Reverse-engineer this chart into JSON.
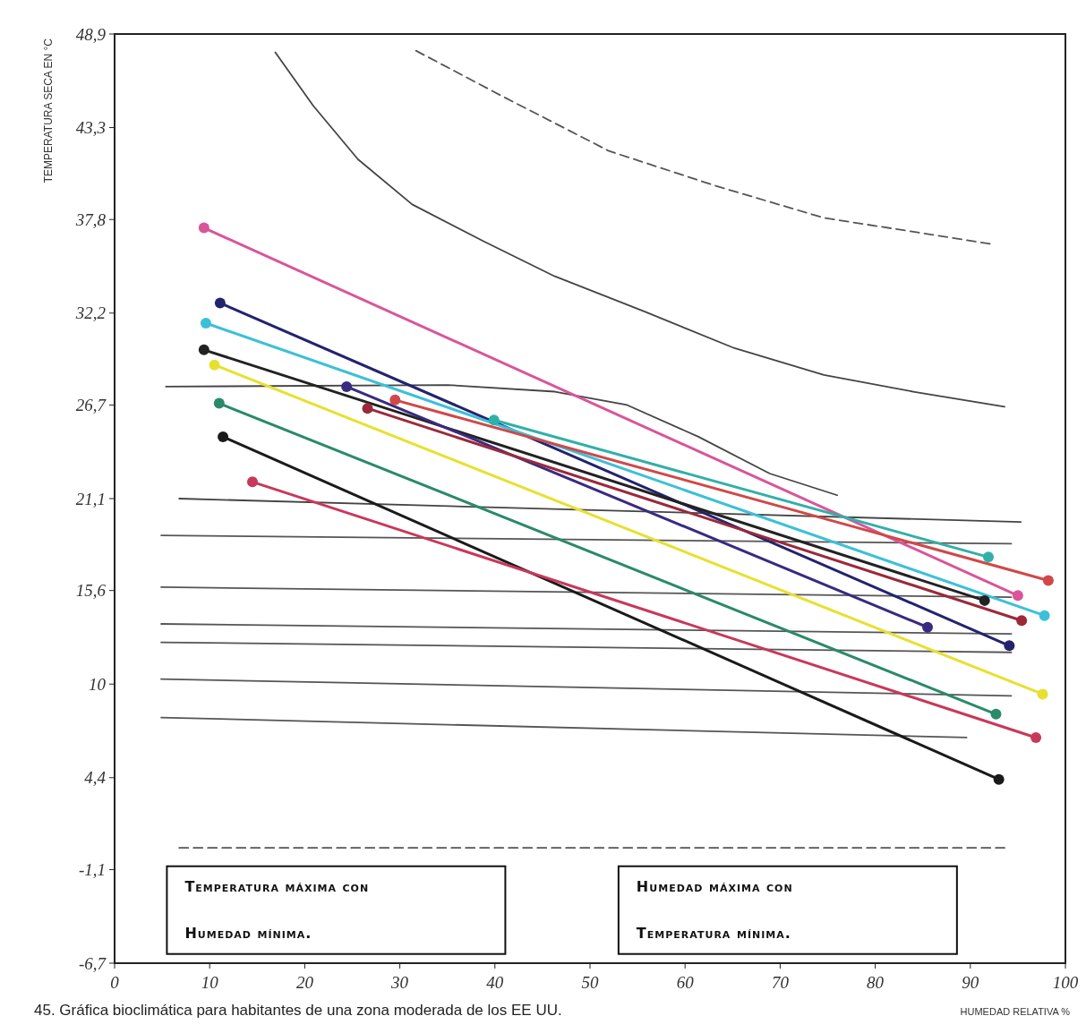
{
  "chart_data": {
    "type": "line",
    "title": "45. Gráfica bioclimática para habitantes de una zona moderada de los EE UU.",
    "xlabel": "HUMEDAD RELATIVA %",
    "ylabel": "TEMPERATURA SECA EN °C",
    "xlim": [
      0,
      100
    ],
    "xticks": [
      0,
      10,
      20,
      30,
      40,
      50,
      60,
      70,
      80,
      90,
      100
    ],
    "ylim": [
      -6.7,
      48.9
    ],
    "yticks": [
      {
        "value": -6.7,
        "label": "-6,7"
      },
      {
        "value": -1.1,
        "label": "-1,1"
      },
      {
        "value": 4.4,
        "label": "4,4"
      },
      {
        "value": 10,
        "label": "10"
      },
      {
        "value": 15.6,
        "label": "15,6"
      },
      {
        "value": 21.1,
        "label": "21,1"
      },
      {
        "value": 26.7,
        "label": "26,7"
      },
      {
        "value": 32.2,
        "label": "32,2"
      },
      {
        "value": 37.8,
        "label": "37,8"
      },
      {
        "value": 43.3,
        "label": "43,3"
      },
      {
        "value": 48.9,
        "label": "48,9"
      }
    ],
    "grid": false,
    "annotations": [
      "Temperatura máxima con Humedad mínima.",
      "Humedad máxima con Temperatura mínima."
    ],
    "series": [
      {
        "color": "#444444",
        "marker": "none",
        "line_style": "solid",
        "x": [
          16.9,
          20.9,
          25.6,
          31.3,
          38.8,
          46.3,
          55.7,
          65.2,
          74.6,
          84.0,
          93.6
        ],
        "values": [
          47.8,
          44.6,
          41.4,
          38.7,
          36.5,
          34.4,
          32.3,
          30.1,
          28.5,
          27.5,
          26.6
        ]
      },
      {
        "color": "#555555",
        "marker": "none",
        "line_style": "dashed",
        "x": [
          31.7,
          40.7,
          52.0,
          63.3,
          74.6,
          85.9,
          92.5
        ],
        "values": [
          47.9,
          45.2,
          41.9,
          39.8,
          37.9,
          36.9,
          36.3
        ]
      },
      {
        "color": "#444444",
        "marker": "none",
        "line_style": "solid",
        "x": [
          5.4,
          35.0,
          46.3,
          53.9,
          61.4,
          68.9,
          76.0
        ],
        "values": [
          27.8,
          27.9,
          27.5,
          26.7,
          24.8,
          22.6,
          21.3
        ]
      },
      {
        "color": "#444444",
        "marker": "none",
        "line_style": "solid",
        "x": [
          6.8,
          95.3
        ],
        "values": [
          21.1,
          19.7
        ]
      },
      {
        "color": "#555555",
        "marker": "none",
        "line_style": "solid",
        "x": [
          4.9,
          94.3
        ],
        "values": [
          18.9,
          18.4
        ]
      },
      {
        "color": "#555555",
        "marker": "none",
        "line_style": "solid",
        "x": [
          4.9,
          94.3
        ],
        "values": [
          15.8,
          15.2
        ]
      },
      {
        "color": "#555555",
        "marker": "none",
        "line_style": "solid",
        "x": [
          4.9,
          94.3
        ],
        "values": [
          13.6,
          13.0
        ]
      },
      {
        "color": "#555555",
        "marker": "none",
        "line_style": "solid",
        "x": [
          4.9,
          94.3
        ],
        "values": [
          12.5,
          11.9
        ]
      },
      {
        "color": "#555555",
        "marker": "none",
        "line_style": "solid",
        "x": [
          4.9,
          94.3
        ],
        "values": [
          10.3,
          9.3
        ]
      },
      {
        "color": "#555555",
        "marker": "none",
        "line_style": "solid",
        "x": [
          4.9,
          89.6
        ],
        "values": [
          8.0,
          6.8
        ]
      },
      {
        "color": "#555555",
        "marker": "none",
        "line_style": "dashed",
        "x": [
          6.8,
          93.6
        ],
        "values": [
          0.2,
          0.2
        ]
      },
      {
        "color": "#d9559a",
        "marker": "circle",
        "line_style": "solid",
        "x": [
          9.4,
          95.0
        ],
        "values": [
          37.3,
          15.3
        ]
      },
      {
        "color": "#23236e",
        "marker": "circle",
        "line_style": "solid",
        "x": [
          11.1,
          94.1
        ],
        "values": [
          32.8,
          12.3
        ]
      },
      {
        "color": "#3cc0d8",
        "marker": "circle",
        "line_style": "solid",
        "x": [
          9.6,
          97.8
        ],
        "values": [
          31.6,
          14.1
        ]
      },
      {
        "color": "#222222",
        "marker": "circle",
        "line_style": "solid",
        "x": [
          9.4,
          91.5
        ],
        "values": [
          30.0,
          15.0
        ]
      },
      {
        "color": "#e8e030",
        "marker": "circle",
        "line_style": "solid",
        "x": [
          10.5,
          97.6
        ],
        "values": [
          29.1,
          9.4
        ]
      },
      {
        "color": "#2a8a6a",
        "marker": "circle",
        "line_style": "solid",
        "x": [
          11.0,
          92.7
        ],
        "values": [
          26.8,
          8.2
        ]
      },
      {
        "color": "#1a1a1a",
        "marker": "circle",
        "line_style": "solid",
        "x": [
          11.4,
          93.0
        ],
        "values": [
          24.8,
          4.3
        ]
      },
      {
        "color": "#c8385a",
        "marker": "circle",
        "line_style": "solid",
        "x": [
          14.5,
          96.9
        ],
        "values": [
          22.1,
          6.8
        ]
      },
      {
        "color": "#3a2a80",
        "marker": "circle",
        "line_style": "solid",
        "x": [
          24.4,
          85.5
        ],
        "values": [
          27.8,
          13.4
        ]
      },
      {
        "color": "#9a2a3a",
        "marker": "circle",
        "line_style": "solid",
        "x": [
          26.6,
          95.4
        ],
        "values": [
          26.5,
          13.8
        ]
      },
      {
        "color": "#d04848",
        "marker": "circle",
        "line_style": "solid",
        "x": [
          29.5,
          98.2
        ],
        "values": [
          27.0,
          16.2
        ]
      },
      {
        "color": "#30b0a8",
        "marker": "circle",
        "line_style": "solid",
        "x": [
          39.9,
          91.9
        ],
        "values": [
          25.8,
          17.6
        ]
      }
    ]
  }
}
